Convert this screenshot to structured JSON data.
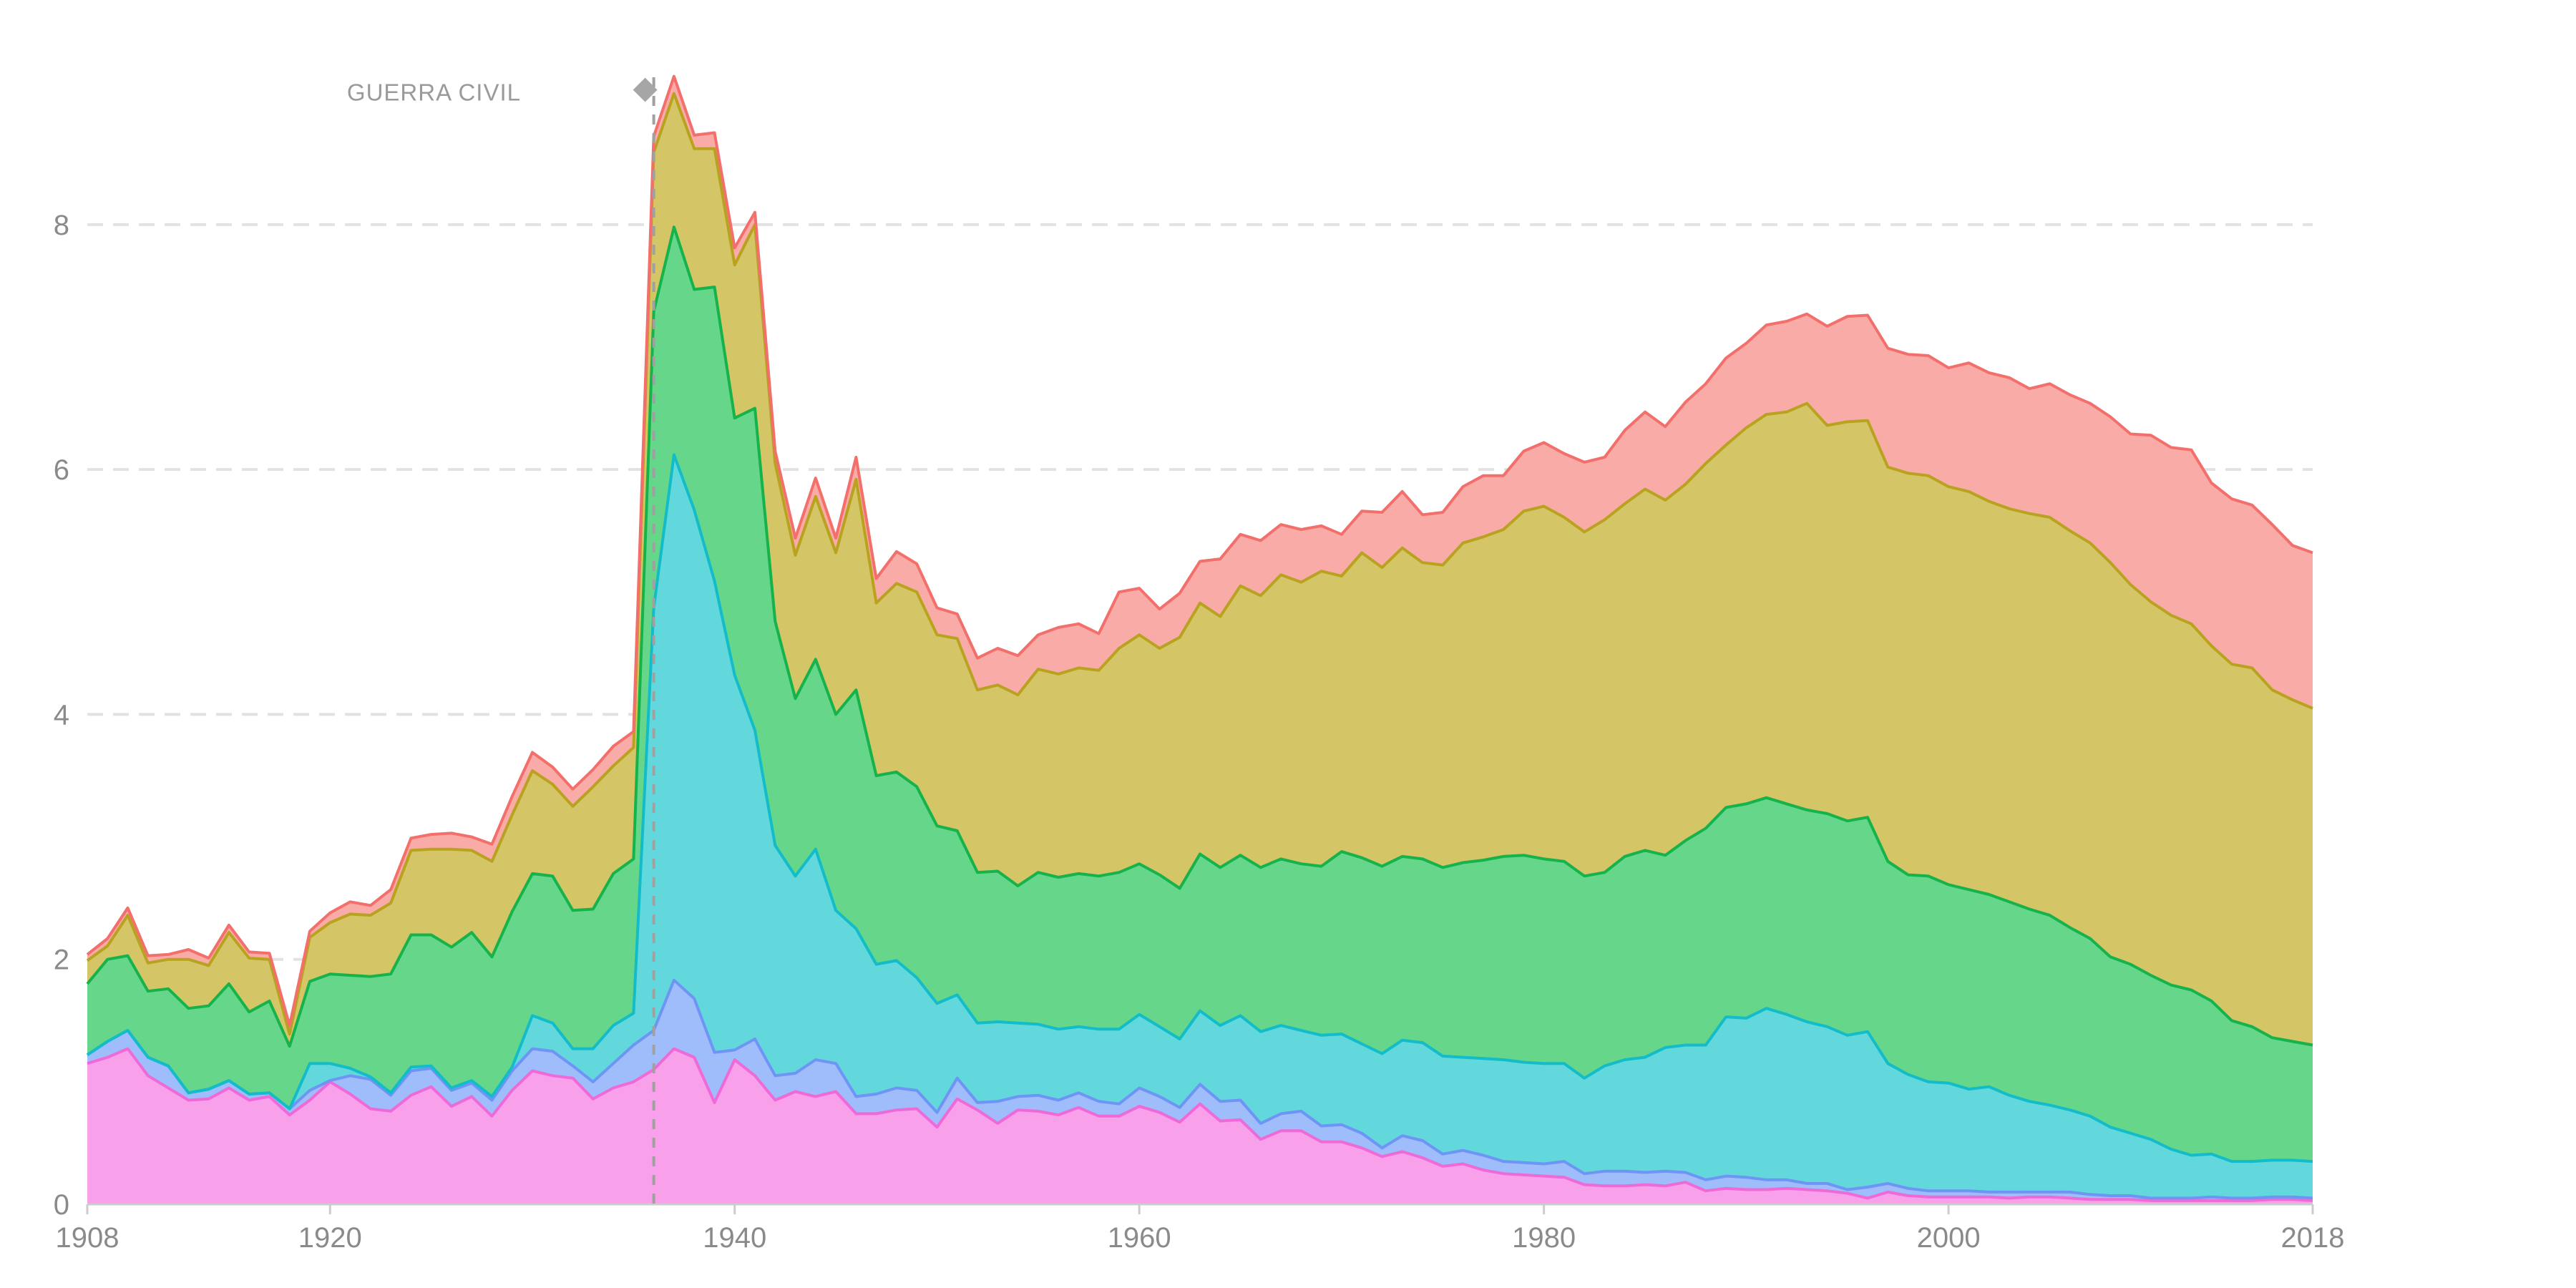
{
  "chart_data": {
    "type": "area",
    "stacked": true,
    "title": "",
    "xlabel": "",
    "ylabel": "",
    "xlim": [
      1908,
      2018
    ],
    "ylim": [
      0,
      9.6
    ],
    "x_ticks": [
      1908,
      1920,
      1940,
      1960,
      1980,
      2000,
      2018
    ],
    "y_ticks": [
      0,
      2,
      4,
      6,
      8
    ],
    "grid": "horizontal-dashed",
    "legend": "none",
    "annotation": {
      "label": "GUERRA CIVIL",
      "x": 1936,
      "y": 9.1
    },
    "colors": [
      "#f9a0ea",
      "#9fbdfa",
      "#63d8dc",
      "#66d68a",
      "#d4c566",
      "#f9aca7"
    ],
    "line_colors": [
      "#ee6ad9",
      "#6e95f5",
      "#12bcc8",
      "#16b24b",
      "#b9a21f",
      "#f26f6c"
    ],
    "years": [
      1908,
      1909,
      1910,
      1911,
      1912,
      1913,
      1914,
      1915,
      1916,
      1917,
      1918,
      1919,
      1920,
      1921,
      1922,
      1923,
      1924,
      1925,
      1926,
      1927,
      1928,
      1929,
      1930,
      1931,
      1932,
      1933,
      1934,
      1935,
      1936,
      1937,
      1938,
      1939,
      1940,
      1941,
      1942,
      1943,
      1944,
      1945,
      1946,
      1947,
      1948,
      1949,
      1950,
      1951,
      1952,
      1953,
      1954,
      1955,
      1956,
      1957,
      1958,
      1959,
      1960,
      1961,
      1962,
      1963,
      1964,
      1965,
      1966,
      1967,
      1968,
      1969,
      1970,
      1971,
      1972,
      1973,
      1974,
      1975,
      1976,
      1977,
      1978,
      1979,
      1980,
      1981,
      1982,
      1983,
      1984,
      1985,
      1986,
      1987,
      1988,
      1989,
      1990,
      1991,
      1992,
      1993,
      1994,
      1995,
      1996,
      1997,
      1998,
      1999,
      2000,
      2001,
      2002,
      2003,
      2004,
      2005,
      2006,
      2007,
      2008,
      2009,
      2010,
      2011,
      2012,
      2013,
      2014,
      2015,
      2016,
      2017,
      2018
    ],
    "series": [
      {
        "values": [
          1.15,
          1.2,
          1.27,
          1.05,
          0.95,
          0.85,
          0.86,
          0.95,
          0.85,
          0.88,
          0.73,
          0.85,
          1.0,
          0.9,
          0.78,
          0.76,
          0.89,
          0.96,
          0.8,
          0.88,
          0.72,
          0.93,
          1.09,
          1.05,
          1.03,
          0.86,
          0.95,
          1.0,
          1.1,
          1.27,
          1.2,
          0.83,
          1.18,
          1.05,
          0.85,
          0.92,
          0.88,
          0.92,
          0.74,
          0.74,
          0.77,
          0.78,
          0.63,
          0.86,
          0.77,
          0.66,
          0.77,
          0.76,
          0.73,
          0.79,
          0.72,
          0.72,
          0.8,
          0.75,
          0.67,
          0.82,
          0.68,
          0.69,
          0.53,
          0.6,
          0.6,
          0.51,
          0.51,
          0.46,
          0.39,
          0.43,
          0.38,
          0.31,
          0.33,
          0.28,
          0.25,
          0.24,
          0.23,
          0.22,
          0.16,
          0.15,
          0.15,
          0.16,
          0.15,
          0.18,
          0.11,
          0.13,
          0.12,
          0.12,
          0.13,
          0.12,
          0.11,
          0.09,
          0.05,
          0.1,
          0.07,
          0.06,
          0.06,
          0.06,
          0.06,
          0.05,
          0.06,
          0.06,
          0.05,
          0.04,
          0.04,
          0.04,
          0.03,
          0.03,
          0.03,
          0.03,
          0.03,
          0.03,
          0.04,
          0.04,
          0.03
        ]
      },
      {
        "values": [
          0.07,
          0.13,
          0.15,
          0.15,
          0.18,
          0.06,
          0.08,
          0.06,
          0.05,
          0.03,
          0.05,
          0.08,
          0.01,
          0.15,
          0.24,
          0.13,
          0.2,
          0.15,
          0.13,
          0.11,
          0.13,
          0.16,
          0.18,
          0.2,
          0.1,
          0.14,
          0.2,
          0.3,
          0.32,
          0.56,
          0.48,
          0.41,
          0.08,
          0.3,
          0.2,
          0.15,
          0.3,
          0.23,
          0.14,
          0.16,
          0.18,
          0.15,
          0.12,
          0.17,
          0.06,
          0.18,
          0.11,
          0.13,
          0.12,
          0.12,
          0.12,
          0.1,
          0.15,
          0.13,
          0.12,
          0.16,
          0.16,
          0.16,
          0.13,
          0.14,
          0.16,
          0.13,
          0.14,
          0.12,
          0.07,
          0.13,
          0.14,
          0.1,
          0.11,
          0.12,
          0.1,
          0.1,
          0.1,
          0.13,
          0.09,
          0.12,
          0.12,
          0.1,
          0.12,
          0.08,
          0.09,
          0.1,
          0.1,
          0.08,
          0.07,
          0.05,
          0.06,
          0.03,
          0.09,
          0.07,
          0.06,
          0.05,
          0.05,
          0.05,
          0.04,
          0.05,
          0.04,
          0.04,
          0.05,
          0.04,
          0.03,
          0.03,
          0.02,
          0.02,
          0.02,
          0.03,
          0.02,
          0.02,
          0.02,
          0.02,
          0.02
        ]
      },
      {
        "values": [
          0,
          0,
          0,
          0,
          0,
          0,
          0,
          0,
          0,
          0,
          0,
          0.22,
          0.14,
          0.06,
          0.02,
          0.02,
          0.03,
          0.02,
          0.02,
          0.02,
          0.03,
          0.03,
          0.27,
          0.23,
          0.14,
          0.27,
          0.31,
          0.26,
          3.45,
          4.29,
          3.99,
          3.85,
          3.06,
          2.52,
          1.88,
          1.61,
          1.72,
          1.25,
          1.37,
          1.06,
          1.04,
          0.92,
          0.89,
          0.68,
          0.65,
          0.65,
          0.6,
          0.58,
          0.58,
          0.54,
          0.59,
          0.61,
          0.6,
          0.57,
          0.56,
          0.6,
          0.62,
          0.69,
          0.75,
          0.72,
          0.66,
          0.74,
          0.74,
          0.73,
          0.77,
          0.78,
          0.8,
          0.8,
          0.76,
          0.79,
          0.83,
          0.82,
          0.82,
          0.8,
          0.78,
          0.86,
          0.91,
          0.94,
          1.01,
          1.04,
          1.1,
          1.3,
          1.3,
          1.4,
          1.35,
          1.32,
          1.28,
          1.26,
          1.27,
          0.98,
          0.93,
          0.89,
          0.88,
          0.83,
          0.86,
          0.79,
          0.74,
          0.71,
          0.67,
          0.64,
          0.56,
          0.51,
          0.48,
          0.4,
          0.35,
          0.35,
          0.3,
          0.3,
          0.3,
          0.3,
          0.3
        ]
      },
      {
        "values": [
          0.58,
          0.67,
          0.61,
          0.54,
          0.63,
          0.69,
          0.68,
          0.79,
          0.67,
          0.75,
          0.51,
          0.67,
          0.73,
          0.76,
          0.82,
          0.97,
          1.08,
          1.07,
          1.15,
          1.21,
          1.14,
          1.27,
          1.16,
          1.2,
          1.13,
          1.14,
          1.24,
          1.26,
          2.42,
          1.86,
          1.8,
          2.4,
          2.1,
          2.63,
          1.83,
          1.45,
          1.55,
          1.6,
          1.95,
          1.54,
          1.54,
          1.56,
          1.45,
          1.34,
          1.23,
          1.23,
          1.12,
          1.24,
          1.24,
          1.25,
          1.25,
          1.28,
          1.23,
          1.24,
          1.23,
          1.28,
          1.29,
          1.31,
          1.34,
          1.36,
          1.36,
          1.38,
          1.49,
          1.52,
          1.53,
          1.5,
          1.5,
          1.54,
          1.59,
          1.62,
          1.66,
          1.69,
          1.67,
          1.65,
          1.65,
          1.58,
          1.66,
          1.69,
          1.57,
          1.67,
          1.77,
          1.71,
          1.75,
          1.72,
          1.72,
          1.73,
          1.74,
          1.75,
          1.75,
          1.65,
          1.63,
          1.68,
          1.62,
          1.63,
          1.57,
          1.58,
          1.57,
          1.55,
          1.49,
          1.45,
          1.39,
          1.38,
          1.34,
          1.34,
          1.35,
          1.25,
          1.15,
          1.1,
          1.0,
          0.97,
          0.95
        ]
      },
      {
        "values": [
          0.19,
          0.11,
          0.33,
          0.23,
          0.24,
          0.4,
          0.33,
          0.42,
          0.44,
          0.34,
          0.1,
          0.36,
          0.42,
          0.5,
          0.5,
          0.58,
          0.69,
          0.7,
          0.8,
          0.67,
          0.78,
          0.79,
          0.84,
          0.75,
          0.85,
          1.0,
          0.88,
          0.91,
          1.3,
          1.09,
          1.15,
          1.13,
          1.25,
          1.5,
          1.29,
          1.17,
          1.33,
          1.32,
          1.72,
          1.41,
          1.54,
          1.59,
          1.56,
          1.57,
          1.49,
          1.52,
          1.56,
          1.66,
          1.66,
          1.68,
          1.68,
          1.83,
          1.87,
          1.85,
          2.05,
          2.05,
          2.05,
          2.2,
          2.22,
          2.32,
          2.3,
          2.41,
          2.25,
          2.49,
          2.44,
          2.52,
          2.42,
          2.47,
          2.61,
          2.64,
          2.67,
          2.81,
          2.88,
          2.81,
          2.81,
          2.88,
          2.88,
          2.95,
          2.9,
          2.91,
          2.98,
          2.96,
          3.07,
          3.13,
          3.2,
          3.32,
          3.17,
          3.26,
          3.24,
          3.22,
          3.28,
          3.27,
          3.25,
          3.25,
          3.21,
          3.21,
          3.23,
          3.25,
          3.24,
          3.23,
          3.22,
          3.1,
          3.05,
          3.02,
          2.99,
          2.9,
          2.91,
          2.93,
          2.84,
          2.79,
          2.75
        ]
      },
      {
        "values": [
          0.05,
          0.06,
          0.06,
          0.06,
          0.04,
          0.08,
          0.06,
          0.06,
          0.05,
          0.05,
          0.07,
          0.05,
          0.08,
          0.1,
          0.08,
          0.11,
          0.1,
          0.12,
          0.13,
          0.11,
          0.14,
          0.15,
          0.15,
          0.14,
          0.14,
          0.14,
          0.16,
          0.13,
          0.13,
          0.14,
          0.11,
          0.13,
          0.14,
          0.1,
          0.1,
          0.14,
          0.15,
          0.12,
          0.18,
          0.2,
          0.26,
          0.23,
          0.22,
          0.2,
          0.26,
          0.3,
          0.32,
          0.28,
          0.38,
          0.36,
          0.3,
          0.46,
          0.38,
          0.32,
          0.36,
          0.34,
          0.47,
          0.42,
          0.45,
          0.41,
          0.43,
          0.37,
          0.34,
          0.34,
          0.45,
          0.46,
          0.39,
          0.43,
          0.46,
          0.5,
          0.44,
          0.49,
          0.52,
          0.52,
          0.57,
          0.51,
          0.6,
          0.63,
          0.6,
          0.67,
          0.65,
          0.71,
          0.69,
          0.73,
          0.74,
          0.73,
          0.81,
          0.86,
          0.86,
          0.97,
          0.97,
          0.98,
          0.97,
          1.05,
          1.05,
          1.07,
          1.02,
          1.09,
          1.11,
          1.14,
          1.19,
          1.23,
          1.36,
          1.37,
          1.42,
          1.33,
          1.35,
          1.33,
          1.35,
          1.26,
          1.27
        ]
      }
    ]
  }
}
